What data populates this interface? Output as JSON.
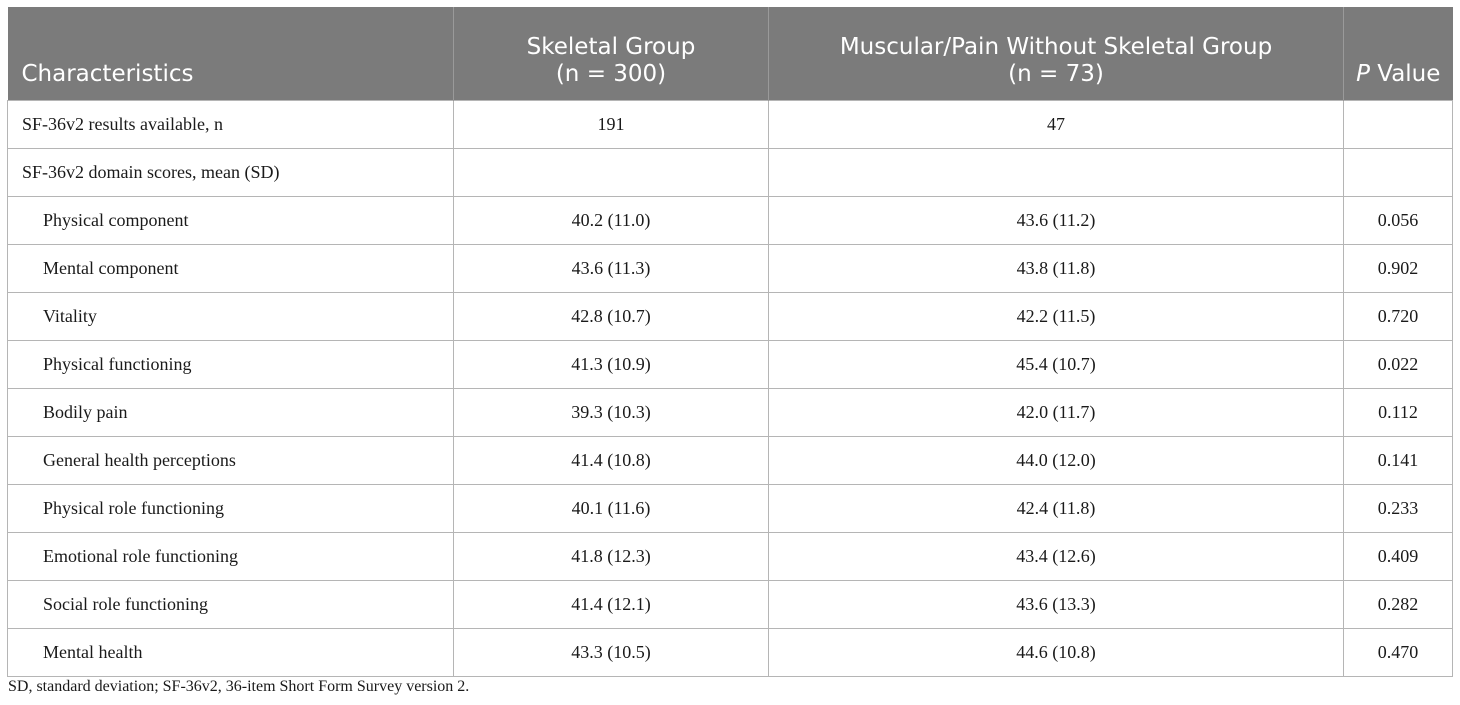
{
  "header": {
    "characteristics": "Characteristics",
    "skeletal_title": "Skeletal Group",
    "skeletal_n": "(n = 300)",
    "muscular_title": "Muscular/Pain Without Skeletal Group",
    "muscular_n": "(n = 73)",
    "p_italic": "P",
    "p_rest": " Value"
  },
  "rows": [
    {
      "label": "SF-36v2 results available, n",
      "skeletal": "191",
      "muscular": "47",
      "p": ""
    },
    {
      "label": "SF-36v2 domain scores, mean (SD)",
      "skeletal": "",
      "muscular": "",
      "p": ""
    },
    {
      "label": "Physical component",
      "skeletal": "40.2 (11.0)",
      "muscular": "43.6 (11.2)",
      "p": "0.056"
    },
    {
      "label": "Mental component",
      "skeletal": "43.6 (11.3)",
      "muscular": "43.8 (11.8)",
      "p": "0.902"
    },
    {
      "label": "Vitality",
      "skeletal": "42.8 (10.7)",
      "muscular": "42.2 (11.5)",
      "p": "0.720"
    },
    {
      "label": "Physical functioning",
      "skeletal": "41.3 (10.9)",
      "muscular": "45.4 (10.7)",
      "p": "0.022"
    },
    {
      "label": "Bodily pain",
      "skeletal": "39.3 (10.3)",
      "muscular": "42.0 (11.7)",
      "p": "0.112"
    },
    {
      "label": "General health perceptions",
      "skeletal": "41.4 (10.8)",
      "muscular": "44.0 (12.0)",
      "p": "0.141"
    },
    {
      "label": "Physical role functioning",
      "skeletal": "40.1 (11.6)",
      "muscular": "42.4 (11.8)",
      "p": "0.233"
    },
    {
      "label": "Emotional role functioning",
      "skeletal": "41.8 (12.3)",
      "muscular": "43.4 (12.6)",
      "p": "0.409"
    },
    {
      "label": "Social role functioning",
      "skeletal": "41.4 (12.1)",
      "muscular": "43.6 (13.3)",
      "p": "0.282"
    },
    {
      "label": "Mental health",
      "skeletal": "43.3 (10.5)",
      "muscular": "44.6 (10.8)",
      "p": "0.470"
    }
  ],
  "footnote": "SD, standard deviation; SF-36v2, 36-item Short Form Survey version 2."
}
